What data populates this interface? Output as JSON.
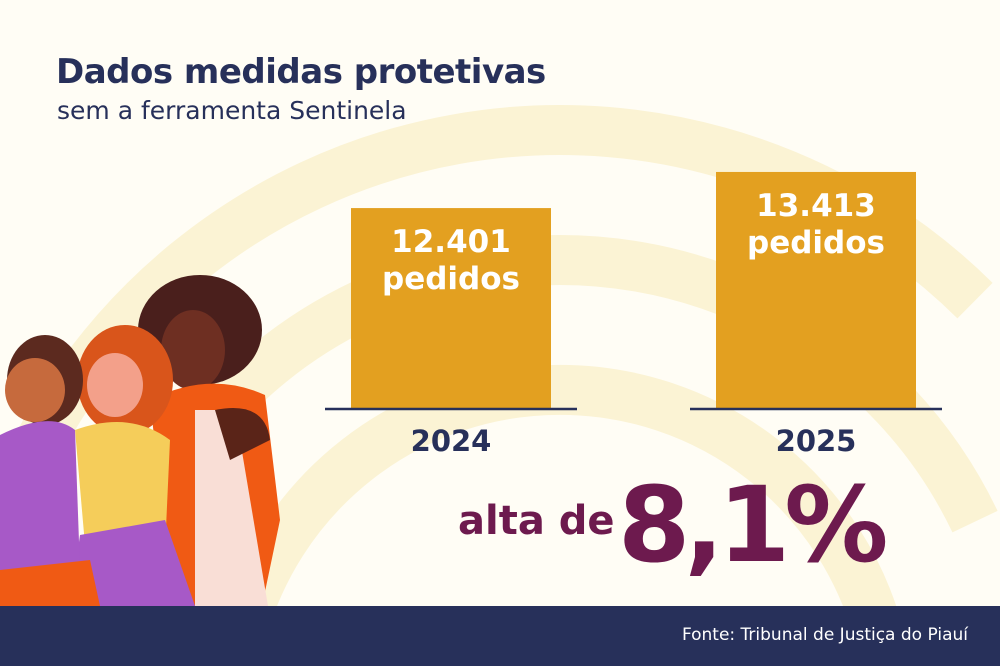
{
  "header": {
    "title": "Dados medidas protetivas",
    "subtitle": "sem a ferramenta Sentinela"
  },
  "chart_data": {
    "type": "bar",
    "categories": [
      "2024",
      "2025"
    ],
    "values": [
      12401,
      13413
    ],
    "data_labels": [
      [
        "12.401",
        "pedidos"
      ],
      [
        "13.413",
        "pedidos"
      ]
    ],
    "ylim": [
      6800,
      14000
    ],
    "grid": false,
    "bar_color": "#e3a020",
    "axis_color": "#27305a"
  },
  "highlight": {
    "label": "alta de",
    "value": "8,1%",
    "color": "#6d1a4e"
  },
  "footer": {
    "source": "Fonte: Tribunal de Justiça do Piauí"
  }
}
